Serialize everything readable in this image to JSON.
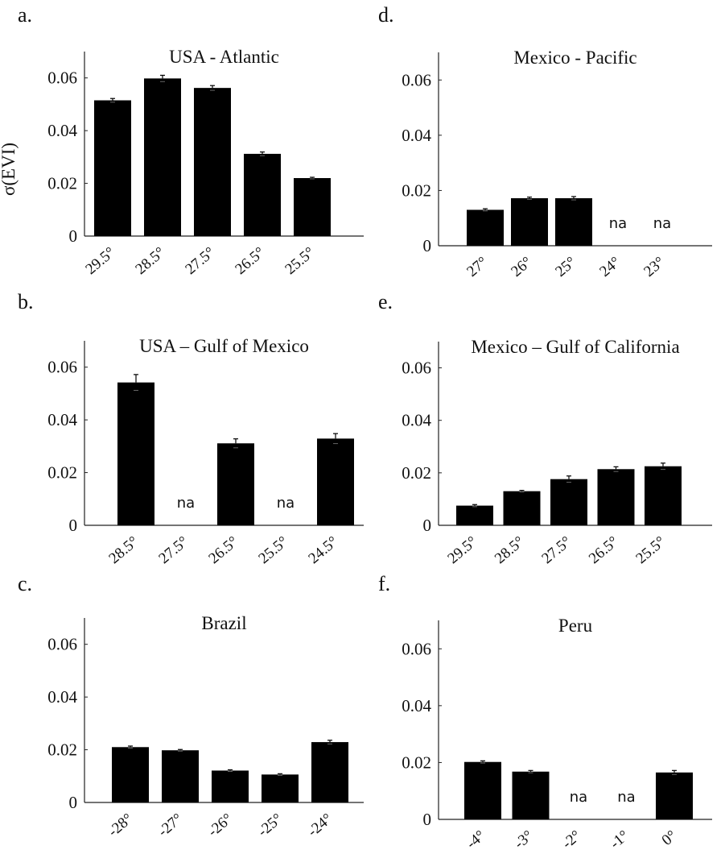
{
  "ylabel": "σ(EVI)",
  "chart_data": [
    {
      "panel": "a.",
      "type": "bar",
      "title": "USA - Atlantic",
      "ylabel": "σ(EVI)",
      "ylim": [
        0,
        0.07
      ],
      "yticks": [
        "0",
        "0.02",
        "0.04",
        "0.06"
      ],
      "categories": [
        "29.5°",
        "28.5°",
        "27.5°",
        "26.5°",
        "25.5°"
      ],
      "values": [
        0.0515,
        0.0598,
        0.0562,
        0.0312,
        0.022
      ],
      "errors": [
        0.0007,
        0.0012,
        0.0009,
        0.0007,
        0.0003
      ],
      "na_label": "na"
    },
    {
      "panel": "b.",
      "type": "bar",
      "title": "USA – Gulf of Mexico",
      "ylabel": "",
      "ylim": [
        0,
        0.07
      ],
      "yticks": [
        "0",
        "0.02",
        "0.04",
        "0.06"
      ],
      "categories": [
        "28.5°",
        "27.5°",
        "26.5°",
        "25.5°",
        "24.5°"
      ],
      "values": [
        0.0542,
        null,
        0.0311,
        null,
        0.0329
      ],
      "errors": [
        0.003,
        null,
        0.0017,
        null,
        0.0019
      ],
      "na_label": "na"
    },
    {
      "panel": "c.",
      "type": "bar",
      "title": "Brazil",
      "ylabel": "",
      "ylim": [
        0,
        0.07
      ],
      "yticks": [
        "0",
        "0.02",
        "0.04",
        "0.06"
      ],
      "categories": [
        "-28°",
        "-27°",
        "-26°",
        "-25°",
        "-24°"
      ],
      "values": [
        0.021,
        0.0198,
        0.0121,
        0.0106,
        0.0229
      ],
      "errors": [
        0.0004,
        0.0003,
        0.0003,
        0.0003,
        0.0007
      ],
      "na_label": "na"
    },
    {
      "panel": "d.",
      "type": "bar",
      "title": "Mexico - Pacific",
      "ylabel": "",
      "ylim": [
        0,
        0.07
      ],
      "yticks": [
        "0",
        "0.02",
        "0.04",
        "0.06"
      ],
      "categories": [
        "27°",
        "26°",
        "25°",
        "24°",
        "23°"
      ],
      "values": [
        0.013,
        0.0172,
        0.0172,
        null,
        null
      ],
      "errors": [
        0.0004,
        0.0004,
        0.0006,
        null,
        null
      ],
      "na_label": "na"
    },
    {
      "panel": "e.",
      "type": "bar",
      "title": "Mexico – Gulf of California",
      "ylabel": "",
      "ylim": [
        0,
        0.07
      ],
      "yticks": [
        "0",
        "0.02",
        "0.04",
        "0.06"
      ],
      "categories": [
        "29.5°",
        "28.5°",
        "27.5°",
        "26.5°",
        "25.5°"
      ],
      "values": [
        0.0075,
        0.013,
        0.0176,
        0.0214,
        0.0225
      ],
      "errors": [
        0.0004,
        0.0003,
        0.0012,
        0.0009,
        0.0012
      ],
      "na_label": "na"
    },
    {
      "panel": "f.",
      "type": "bar",
      "title": "Peru",
      "ylabel": "",
      "ylim": [
        0,
        0.07
      ],
      "yticks": [
        "0",
        "0.02",
        "0.04",
        "0.06"
      ],
      "categories": [
        "-4°",
        "-3°",
        "-2°",
        "-1°",
        "0°"
      ],
      "values": [
        0.0202,
        0.0168,
        null,
        null,
        0.0165
      ],
      "errors": [
        0.0004,
        0.0004,
        null,
        null,
        0.0007
      ],
      "na_label": "na"
    }
  ]
}
